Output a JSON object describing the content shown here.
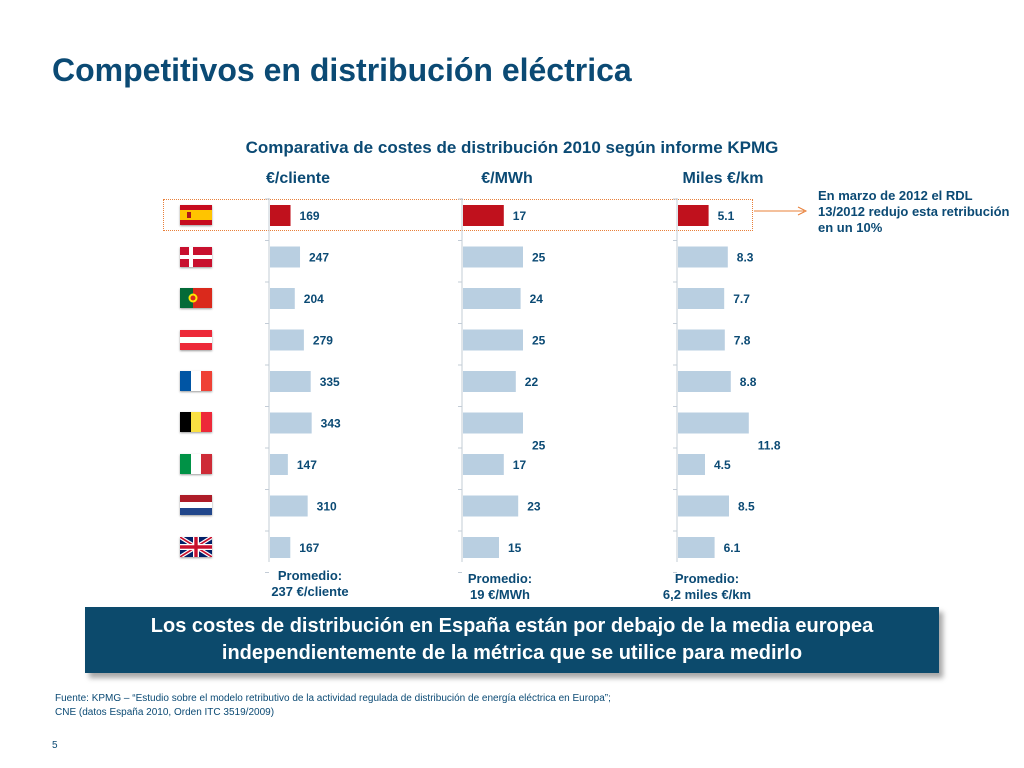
{
  "title": "Competitivos en distribución eléctrica",
  "subtitle": "Comparativa de costes de distribución 2010 según informe KPMG",
  "annotation": "En marzo de 2012 el RDL 13/2012 redujo esta retribución en un 10%",
  "conclusion": "Los costes de distribución en España están por debajo de la media europea independientemente de la métrica que se utilice para medirlo",
  "source_lines": [
    "Fuente: KPMG – “Estudio sobre el modelo retributivo de la actividad regulada de distribución de energía eléctrica en Europa”;",
    "CNE (datos España 2010, Orden ITC 3519/2009)"
  ],
  "page_number": "5",
  "colors": {
    "highlight_bar": "#c0111d",
    "bar": "#b9cfe1",
    "text": "#0b4a74",
    "box": "#0c4a6c"
  },
  "countries": [
    {
      "flag": "spain-flag"
    },
    {
      "flag": "denmark-flag"
    },
    {
      "flag": "portugal-flag"
    },
    {
      "flag": "austria-flag"
    },
    {
      "flag": "france-flag"
    },
    {
      "flag": "belgium-flag"
    },
    {
      "flag": "italy-flag"
    },
    {
      "flag": "netherlands-flag"
    },
    {
      "flag": "uk-flag"
    }
  ],
  "chart_data": [
    {
      "type": "bar",
      "title": "€/cliente",
      "values": [
        169,
        247,
        204,
        279,
        335,
        343,
        147,
        310,
        167
      ],
      "labels": [
        "169",
        "247",
        "204",
        "279",
        "335",
        "343",
        "147",
        "310",
        "167"
      ],
      "highlight_index": 0,
      "average": [
        "Promedio:",
        "237 €/cliente"
      ]
    },
    {
      "type": "bar",
      "title": "€/MWh",
      "values": [
        17,
        25,
        24,
        25,
        22,
        25,
        17,
        23,
        15
      ],
      "labels": [
        "17",
        "25",
        "24",
        "25",
        "22",
        "25",
        "17",
        "23",
        "15"
      ],
      "highlight_index": 0,
      "average": [
        "Promedio:",
        "19 €/MWh"
      ]
    },
    {
      "type": "bar",
      "title": "Miles €/km",
      "values": [
        5.1,
        8.3,
        7.7,
        7.8,
        8.8,
        11.8,
        4.5,
        8.5,
        6.1
      ],
      "labels": [
        "5.1",
        "8.3",
        "7.7",
        "7.8",
        "8.8",
        "11.8",
        "4.5",
        "8.5",
        "6.1"
      ],
      "highlight_index": 0,
      "average": [
        "Promedio:",
        "6,2 miles €/km"
      ]
    }
  ]
}
